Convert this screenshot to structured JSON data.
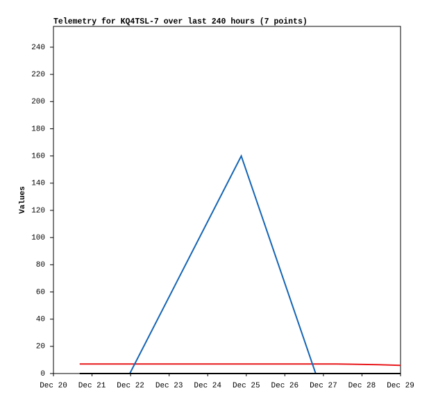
{
  "chart_data": {
    "type": "line",
    "title": "Telemetry for KQ4TSL-7 over last 240 hours (7 points)",
    "y_label": "Values",
    "x": [
      20.68,
      21.98,
      24.87,
      26.8,
      27.34,
      28.42,
      29
    ],
    "series": [
      {
        "color": "#e8181c",
        "values": [
          7,
          7,
          7,
          7,
          7,
          6.5,
          6
        ]
      },
      {
        "color": "#1464b4",
        "values": [
          0,
          0,
          160,
          0,
          0,
          0,
          0
        ]
      },
      {
        "color": "#000000",
        "values": [
          0,
          0,
          0,
          0,
          0,
          0,
          0
        ]
      }
    ],
    "xlim": [
      20,
      29
    ],
    "xticks": [
      {
        "value": 20,
        "label": "Dec 20"
      },
      {
        "value": 21,
        "label": "Dec 21"
      },
      {
        "value": 22,
        "label": "Dec 22"
      },
      {
        "value": 23,
        "label": "Dec 23"
      },
      {
        "value": 24,
        "label": "Dec 24"
      },
      {
        "value": 25,
        "label": "Dec 25"
      },
      {
        "value": 26,
        "label": "Dec 26"
      },
      {
        "value": 27,
        "label": "Dec 27"
      },
      {
        "value": 28,
        "label": "Dec 28"
      },
      {
        "value": 29,
        "label": "Dec 29"
      }
    ],
    "ylim": [
      0,
      255.3
    ],
    "yticks": [
      0,
      20,
      40,
      60,
      80,
      100,
      120,
      140,
      160,
      180,
      200,
      220,
      240
    ],
    "grid": false
  }
}
